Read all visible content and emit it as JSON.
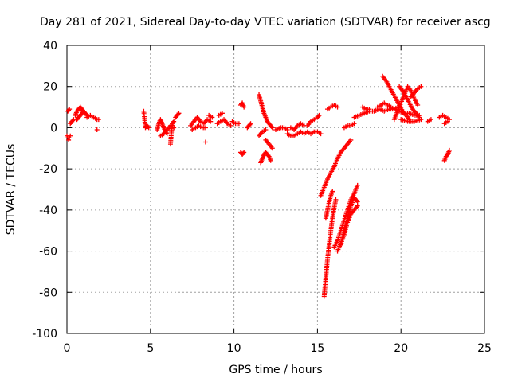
{
  "chart_data": {
    "type": "scatter",
    "title": "Day 281 of 2021, Sidereal Day-to-day VTEC variation (SDTVAR) for receiver ascg",
    "xlabel": "GPS time / hours",
    "ylabel": "SDTVAR / TECUs",
    "xlim": [
      0,
      25
    ],
    "ylim": [
      -100,
      40
    ],
    "xticks": [
      0,
      5,
      10,
      15,
      20,
      25
    ],
    "yticks": [
      -100,
      -80,
      -60,
      -40,
      -20,
      0,
      20,
      40
    ],
    "xtick_labels": [
      "0",
      "5",
      "10",
      "15",
      "20",
      "25"
    ],
    "ytick_labels": [
      "-100",
      "-80",
      "-60",
      "-40",
      "-20",
      "0",
      "20",
      "40"
    ],
    "grid": true,
    "marker": "+",
    "color": "#ff0000",
    "series": [
      {
        "name": "SDTVAR",
        "segments": [
          {
            "x": [
              0.0,
              0.05,
              0.1,
              0.15,
              0.2
            ],
            "y": [
              -4,
              -5,
              -6,
              -5,
              -4
            ]
          },
          {
            "x": [
              0.05,
              0.15
            ],
            "y": [
              8,
              9
            ]
          },
          {
            "x": [
              0.2,
              0.3,
              0.4
            ],
            "y": [
              2,
              3,
              4
            ]
          },
          {
            "x": [
              0.5,
              0.6,
              0.7,
              0.8,
              0.9,
              1.0,
              1.1,
              1.2
            ],
            "y": [
              6,
              8,
              9,
              10,
              9,
              8,
              7,
              6
            ]
          },
          {
            "x": [
              0.6,
              0.7,
              0.8,
              0.9,
              1.0
            ],
            "y": [
              4,
              5,
              6,
              7,
              8
            ]
          },
          {
            "x": [
              1.2,
              1.4,
              1.6,
              1.8,
              1.9
            ],
            "y": [
              5,
              6,
              5,
              4,
              4
            ]
          },
          {
            "x": [
              1.8
            ],
            "y": [
              -1
            ]
          },
          {
            "x": [
              4.6,
              4.7,
              4.8,
              4.9
            ],
            "y": [
              8,
              0,
              1,
              0
            ]
          },
          {
            "x": [
              5.4,
              5.5,
              5.6,
              5.7,
              5.8,
              5.9,
              6.0
            ],
            "y": [
              -1,
              2,
              4,
              2,
              0,
              -2,
              -3
            ]
          },
          {
            "x": [
              5.6,
              5.8,
              6.0,
              6.2,
              6.4
            ],
            "y": [
              -4,
              -3,
              -1,
              1,
              0
            ]
          },
          {
            "x": [
              6.2,
              6.3,
              6.4
            ],
            "y": [
              -8,
              2,
              3
            ]
          },
          {
            "x": [
              6.5,
              6.6,
              6.7
            ],
            "y": [
              5,
              6,
              7
            ]
          },
          {
            "x": [
              7.4,
              7.6,
              7.8,
              8.0,
              8.2,
              8.4,
              8.6
            ],
            "y": [
              1,
              3,
              5,
              3,
              2,
              4,
              3
            ]
          },
          {
            "x": [
              7.5,
              7.7,
              7.9,
              8.1,
              8.3
            ],
            "y": [
              -1,
              0,
              1,
              0,
              0
            ]
          },
          {
            "x": [
              8.3
            ],
            "y": [
              -7
            ]
          },
          {
            "x": [
              8.5,
              8.7
            ],
            "y": [
              6,
              5
            ]
          },
          {
            "x": [
              9.0,
              9.2,
              9.4,
              9.6,
              9.8
            ],
            "y": [
              2,
              3,
              4,
              2,
              1
            ]
          },
          {
            "x": [
              9.1,
              9.3
            ],
            "y": [
              6,
              7
            ]
          },
          {
            "x": [
              9.9,
              10.1,
              10.3
            ],
            "y": [
              3,
              2,
              2
            ]
          },
          {
            "x": [
              10.4,
              10.5,
              10.6
            ],
            "y": [
              11,
              12,
              10
            ]
          },
          {
            "x": [
              10.4,
              10.5,
              10.6
            ],
            "y": [
              -12,
              -13,
              -12
            ]
          },
          {
            "x": [
              10.8,
              10.9,
              11.0
            ],
            "y": [
              0,
              1,
              2
            ]
          },
          {
            "x": [
              11.5,
              11.6,
              11.7,
              11.8,
              11.9,
              12.0,
              12.1,
              12.2,
              12.3
            ],
            "y": [
              16,
              13,
              10,
              7,
              5,
              3,
              2,
              1,
              0
            ]
          },
          {
            "x": [
              11.6,
              11.7,
              11.8,
              11.9,
              12.0,
              12.1,
              12.2
            ],
            "y": [
              -17,
              -15,
              -13,
              -12,
              -13,
              -14,
              -16
            ]
          },
          {
            "x": [
              11.5,
              11.7,
              11.9
            ],
            "y": [
              -4,
              -2,
              -1
            ]
          },
          {
            "x": [
              11.9,
              12.1,
              12.3
            ],
            "y": [
              -6,
              -8,
              -10
            ]
          },
          {
            "x": [
              12.5,
              12.8,
              13.0,
              13.2
            ],
            "y": [
              -1,
              0,
              0,
              -1
            ]
          },
          {
            "x": [
              13.2,
              13.4,
              13.6,
              13.8,
              14.0,
              14.2,
              14.4,
              14.6,
              14.8,
              15.0,
              15.2
            ],
            "y": [
              -3,
              -4,
              -4,
              -3,
              -2,
              -3,
              -2,
              -3,
              -2,
              -2,
              -3
            ]
          },
          {
            "x": [
              13.4,
              13.6,
              13.8,
              14.0,
              14.2
            ],
            "y": [
              0,
              -1,
              1,
              2,
              1
            ]
          },
          {
            "x": [
              14.4,
              14.6,
              14.8,
              15.0,
              15.1
            ],
            "y": [
              1,
              3,
              4,
              5,
              6
            ]
          },
          {
            "x": [
              15.2,
              15.4,
              15.6,
              15.8,
              16.0,
              16.2,
              16.4,
              16.6,
              16.8,
              17.0
            ],
            "y": [
              -33,
              -29,
              -25,
              -22,
              -19,
              -15,
              -12,
              -10,
              -8,
              -6
            ]
          },
          {
            "x": [
              15.4,
              15.5,
              15.6,
              15.7,
              15.8,
              15.9,
              16.0,
              16.1
            ],
            "y": [
              -82,
              -73,
              -64,
              -57,
              -50,
              -44,
              -39,
              -35
            ]
          },
          {
            "x": [
              15.5,
              15.6,
              15.7,
              15.8,
              15.9
            ],
            "y": [
              -44,
              -40,
              -36,
              -33,
              -31
            ]
          },
          {
            "x": [
              16.0,
              16.2,
              16.4,
              16.6,
              16.8,
              17.0,
              17.2,
              17.4
            ],
            "y": [
              -58,
              -55,
              -50,
              -45,
              -40,
              -35,
              -32,
              -28
            ]
          },
          {
            "x": [
              16.2,
              16.4,
              16.6,
              16.8,
              17.0,
              17.2,
              17.4
            ],
            "y": [
              -60,
              -56,
              -52,
              -46,
              -42,
              -40,
              -38
            ]
          },
          {
            "x": [
              16.4,
              16.6,
              16.8,
              17.0,
              17.2,
              17.4
            ],
            "y": [
              -57,
              -50,
              -44,
              -38,
              -34,
              -36
            ]
          },
          {
            "x": [
              15.6,
              15.8,
              16.0,
              16.2
            ],
            "y": [
              9,
              10,
              11,
              10
            ]
          },
          {
            "x": [
              16.6,
              16.8,
              17.0,
              17.2
            ],
            "y": [
              0,
              1,
              1,
              2
            ]
          },
          {
            "x": [
              17.2,
              17.5,
              17.8,
              18.1,
              18.4,
              18.7,
              19.0,
              19.3,
              19.6,
              19.9,
              20.2,
              20.5,
              20.8,
              21.1
            ],
            "y": [
              5,
              6,
              7,
              8,
              8,
              9,
              8,
              9,
              9,
              8,
              7,
              7,
              6,
              6
            ]
          },
          {
            "x": [
              17.7,
              17.9,
              18.1
            ],
            "y": [
              10,
              9,
              9
            ]
          },
          {
            "x": [
              18.6,
              18.8,
              19.0,
              19.2,
              19.4,
              19.6,
              19.8
            ],
            "y": [
              10,
              11,
              12,
              11,
              10,
              9,
              10
            ]
          },
          {
            "x": [
              18.9,
              19.1,
              19.3,
              19.5,
              19.7,
              19.9,
              20.1,
              20.3,
              20.5
            ],
            "y": [
              25,
              23,
              20,
              17,
              14,
              11,
              8,
              6,
              4
            ]
          },
          {
            "x": [
              19.6,
              19.8,
              20.0,
              20.2,
              20.4,
              20.6,
              20.8,
              21.0
            ],
            "y": [
              4,
              8,
              12,
              16,
              20,
              18,
              14,
              11
            ]
          },
          {
            "x": [
              19.9,
              20.1,
              20.3,
              20.5,
              20.7,
              20.9,
              21.1
            ],
            "y": [
              20,
              18,
              15,
              12,
              9,
              7,
              5
            ]
          },
          {
            "x": [
              20.6,
              20.8,
              21.0,
              21.2
            ],
            "y": [
              15,
              17,
              19,
              20
            ]
          },
          {
            "x": [
              20.0,
              20.4,
              20.8,
              21.2
            ],
            "y": [
              4,
              3,
              3,
              4
            ]
          },
          {
            "x": [
              21.6,
              21.8
            ],
            "y": [
              3,
              4
            ]
          },
          {
            "x": [
              22.3,
              22.5,
              22.7,
              22.9
            ],
            "y": [
              5,
              6,
              5,
              4
            ]
          },
          {
            "x": [
              22.6,
              22.8
            ],
            "y": [
              2,
              3
            ]
          },
          {
            "x": [
              22.6,
              22.7,
              22.8,
              22.9
            ],
            "y": [
              -16,
              -14,
              -13,
              -11
            ]
          }
        ]
      }
    ]
  }
}
